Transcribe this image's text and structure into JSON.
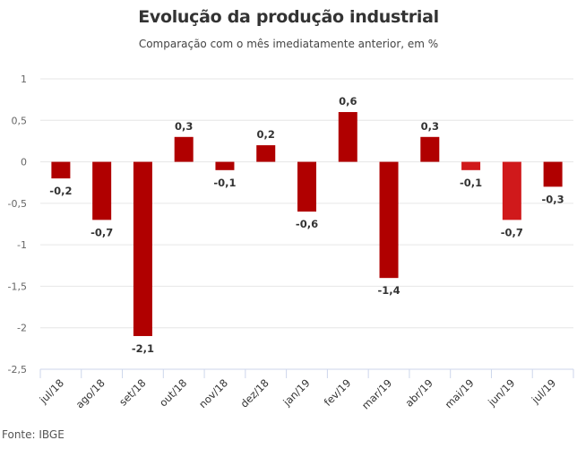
{
  "chart_data": {
    "type": "bar",
    "title": "Evolução da produção industrial",
    "subtitle": "Comparação com o mês imediatamente anterior, em %",
    "xlabel": "",
    "ylabel": "",
    "categories": [
      "jul/18",
      "ago/18",
      "set/18",
      "out/18",
      "nov/18",
      "dez/18",
      "jan/19",
      "fev/19",
      "mar/19",
      "abr/19",
      "mai/19",
      "jun/19",
      "jul/19"
    ],
    "values": [
      -0.2,
      -0.7,
      -2.1,
      0.3,
      -0.1,
      0.2,
      -0.6,
      0.6,
      -1.4,
      0.3,
      -0.1,
      -0.7,
      -0.3
    ],
    "data_labels": [
      "-0,2",
      "-0,7",
      "-2,1",
      "0,3",
      "-0,1",
      "0,2",
      "-0,6",
      "0,6",
      "-1,4",
      "0,3",
      "-0,1",
      "-0,7",
      "-0,3"
    ],
    "highlighted": [
      false,
      false,
      false,
      false,
      false,
      false,
      false,
      false,
      false,
      false,
      true,
      true,
      false
    ],
    "ylim": [
      -2.5,
      1
    ],
    "yticks": [
      1,
      0.5,
      0,
      -0.5,
      -1,
      -1.5,
      -2,
      -2.5
    ],
    "ytick_labels": [
      "1",
      "0,5",
      "0",
      "-0,5",
      "-1",
      "-1,5",
      "-2",
      "-2,5"
    ],
    "grid": true,
    "legend": "none",
    "colors": {
      "bar": "#b00000",
      "bar_highlight": "#d0191b",
      "grid": "#e6e6e6",
      "axis": "#ccd6eb"
    },
    "source": "Fonte: IBGE"
  }
}
